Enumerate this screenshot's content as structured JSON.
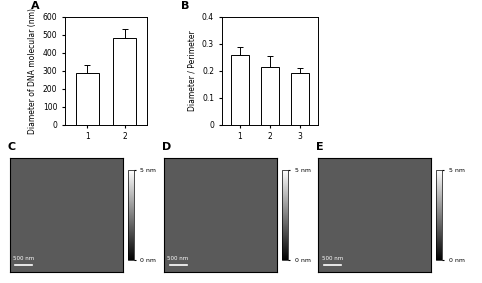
{
  "chart_data": [
    {
      "type": "bar",
      "title": "A",
      "y_label": "Diameter of DNA molecular (nm)",
      "categories": [
        "1",
        "2"
      ],
      "values": [
        290,
        480
      ],
      "errors": [
        40,
        55
      ],
      "color": "#ffffff",
      "ylim": [
        0,
        600
      ],
      "yticks": [
        0,
        100,
        200,
        300,
        400,
        500,
        600
      ]
    },
    {
      "type": "bar",
      "title": "B",
      "y_label": "Diameter / Perimeter",
      "categories": [
        "1",
        "2",
        "3"
      ],
      "values": [
        0.26,
        0.215,
        0.19
      ],
      "errors": [
        0.03,
        0.04,
        0.022
      ],
      "color": "#ffffff",
      "ylim": [
        0,
        0.4
      ],
      "yticks": [
        0,
        0.1,
        0.2,
        0.3,
        0.4
      ]
    }
  ],
  "images": [
    {
      "title": "C",
      "scale_bar": "500 nm",
      "colorbar_range": [
        0,
        5
      ],
      "colorbar_ticks": [
        {
          "value": 0,
          "label": "0 nm"
        },
        {
          "value": 5,
          "label": "5 nm"
        }
      ]
    },
    {
      "title": "D",
      "scale_bar": "500 nm",
      "colorbar_range": [
        0,
        5
      ],
      "colorbar_ticks": [
        {
          "value": 0,
          "label": "0 nm"
        },
        {
          "value": 5,
          "label": "5 nm"
        }
      ]
    },
    {
      "title": "E",
      "scale_bar": "500 nm",
      "colorbar_range": [
        0,
        5
      ],
      "colorbar_ticks": [
        {
          "value": 0,
          "label": "0 nm"
        },
        {
          "value": 5,
          "label": "5 nm"
        }
      ]
    }
  ]
}
